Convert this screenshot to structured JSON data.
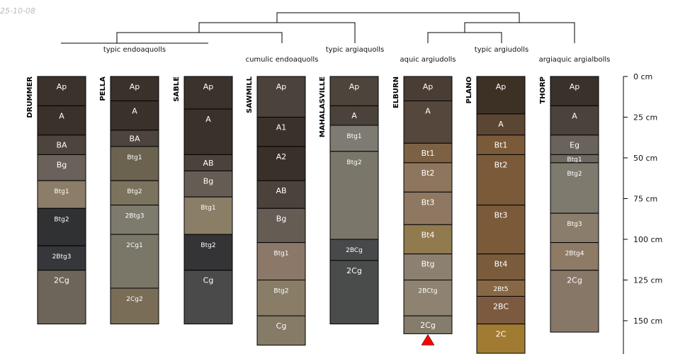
{
  "date_label": "25-10-08",
  "groups": [
    {
      "label": "typic endoaquolls"
    },
    {
      "label": "cumulic endoaquolls"
    },
    {
      "label": "typic argiaquolls"
    },
    {
      "label": "aquic argiudolls"
    },
    {
      "label": "typic argiudolls"
    },
    {
      "label": "argiaquic argialbolls"
    }
  ],
  "depth_axis": {
    "unit": "cm",
    "ticks": [
      {
        "value": 0,
        "label": "0 cm"
      },
      {
        "value": 25,
        "label": "25 cm"
      },
      {
        "value": 50,
        "label": "50 cm"
      },
      {
        "value": 75,
        "label": "75 cm"
      },
      {
        "value": 100,
        "label": "100 cm"
      },
      {
        "value": 125,
        "label": "125 cm"
      },
      {
        "value": 150,
        "label": "150 cm"
      }
    ]
  },
  "profiles": [
    {
      "name": "DRUMMER",
      "horizons": [
        {
          "name": "Ap",
          "top": 0,
          "bottom": 18,
          "color": "#3b322c"
        },
        {
          "name": "A",
          "top": 18,
          "bottom": 36,
          "color": "#3a312b"
        },
        {
          "name": "BA",
          "top": 36,
          "bottom": 48,
          "color": "#4d453d"
        },
        {
          "name": "Bg",
          "top": 48,
          "bottom": 64,
          "color": "#6a625a"
        },
        {
          "name": "Btg1",
          "top": 64,
          "bottom": 81,
          "color": "#8b7d67"
        },
        {
          "name": "Btg2",
          "top": 81,
          "bottom": 104,
          "color": "#303133"
        },
        {
          "name": "2Btg3",
          "top": 104,
          "bottom": 119,
          "color": "#36373a"
        },
        {
          "name": "2Cg",
          "top": 119,
          "bottom": 152,
          "color": "#6e655a"
        }
      ]
    },
    {
      "name": "PELLA",
      "horizons": [
        {
          "name": "Ap",
          "top": 0,
          "bottom": 15,
          "color": "#3a312b"
        },
        {
          "name": "A",
          "top": 15,
          "bottom": 33,
          "color": "#3a312b"
        },
        {
          "name": "BA",
          "top": 33,
          "bottom": 43,
          "color": "#4d453d"
        },
        {
          "name": "Btg1",
          "top": 43,
          "bottom": 64,
          "color": "#6b6350"
        },
        {
          "name": "Btg2",
          "top": 64,
          "bottom": 79,
          "color": "#7c735e"
        },
        {
          "name": "2Btg3",
          "top": 79,
          "bottom": 97,
          "color": "#7e7a6e"
        },
        {
          "name": "2Cg1",
          "top": 97,
          "bottom": 130,
          "color": "#7a7668"
        },
        {
          "name": "2Cg2",
          "top": 130,
          "bottom": 152,
          "color": "#7a6d57"
        }
      ]
    },
    {
      "name": "SABLE",
      "horizons": [
        {
          "name": "Ap",
          "top": 0,
          "bottom": 20,
          "color": "#3b322c"
        },
        {
          "name": "A",
          "top": 20,
          "bottom": 48,
          "color": "#3a312b"
        },
        {
          "name": "AB",
          "top": 48,
          "bottom": 58,
          "color": "#4a423b"
        },
        {
          "name": "Bg",
          "top": 58,
          "bottom": 74,
          "color": "#655d54"
        },
        {
          "name": "Btg1",
          "top": 74,
          "bottom": 97,
          "color": "#8a7e66"
        },
        {
          "name": "Btg2",
          "top": 97,
          "bottom": 119,
          "color": "#343436"
        },
        {
          "name": "Cg",
          "top": 119,
          "bottom": 152,
          "color": "#4a4a4a"
        }
      ]
    },
    {
      "name": "SAWMILL",
      "horizons": [
        {
          "name": "Ap",
          "top": 0,
          "bottom": 25,
          "color": "#4a423b"
        },
        {
          "name": "A1",
          "top": 25,
          "bottom": 43,
          "color": "#3a312b"
        },
        {
          "name": "A2",
          "top": 43,
          "bottom": 64,
          "color": "#39302a"
        },
        {
          "name": "AB",
          "top": 64,
          "bottom": 81,
          "color": "#4a423b"
        },
        {
          "name": "Bg",
          "top": 81,
          "bottom": 102,
          "color": "#655d54"
        },
        {
          "name": "Btg1",
          "top": 102,
          "bottom": 125,
          "color": "#8c7868"
        },
        {
          "name": "Btg2",
          "top": 125,
          "bottom": 147,
          "color": "#8a7d67"
        },
        {
          "name": "Cg",
          "top": 147,
          "bottom": 165,
          "color": "#857b66"
        }
      ]
    },
    {
      "name": "MAHALASVILLE",
      "horizons": [
        {
          "name": "Ap",
          "top": 0,
          "bottom": 18,
          "color": "#4d443c"
        },
        {
          "name": "A",
          "top": 18,
          "bottom": 30,
          "color": "#4a423b"
        },
        {
          "name": "Btg1",
          "top": 30,
          "bottom": 46,
          "color": "#7e7c72"
        },
        {
          "name": "Btg2",
          "top": 46,
          "bottom": 100,
          "color": "#7a7669"
        },
        {
          "name": "2BCg",
          "top": 100,
          "bottom": 113,
          "color": "#48494b"
        },
        {
          "name": "2Cg",
          "top": 113,
          "bottom": 152,
          "color": "#4a4b4b"
        }
      ]
    },
    {
      "name": "ELBURN",
      "horizons": [
        {
          "name": "Ap",
          "top": 0,
          "bottom": 15,
          "color": "#4a3e34"
        },
        {
          "name": "A",
          "top": 15,
          "bottom": 41,
          "color": "#55473c"
        },
        {
          "name": "Bt1",
          "top": 41,
          "bottom": 53,
          "color": "#7c6144"
        },
        {
          "name": "Bt2",
          "top": 53,
          "bottom": 71,
          "color": "#8e765e"
        },
        {
          "name": "Bt3",
          "top": 71,
          "bottom": 91,
          "color": "#8f7861"
        },
        {
          "name": "Bt4",
          "top": 91,
          "bottom": 109,
          "color": "#927a4f"
        },
        {
          "name": "Btg",
          "top": 109,
          "bottom": 125,
          "color": "#8c8170"
        },
        {
          "name": "2BCtg",
          "top": 125,
          "bottom": 147,
          "color": "#8e8270"
        },
        {
          "name": "2Cg",
          "top": 147,
          "bottom": 158,
          "color": "#867c6b"
        }
      ],
      "truncated": true
    },
    {
      "name": "PLANO",
      "horizons": [
        {
          "name": "Ap",
          "top": 0,
          "bottom": 23,
          "color": "#3d3025"
        },
        {
          "name": "A",
          "top": 23,
          "bottom": 36,
          "color": "#5b4634"
        },
        {
          "name": "Bt1",
          "top": 36,
          "bottom": 48,
          "color": "#7b5a3a"
        },
        {
          "name": "Bt2",
          "top": 48,
          "bottom": 79,
          "color": "#7b5a3a"
        },
        {
          "name": "Bt3",
          "top": 79,
          "bottom": 109,
          "color": "#7b5a3a"
        },
        {
          "name": "Bt4",
          "top": 109,
          "bottom": 125,
          "color": "#7a5b3b"
        },
        {
          "name": "2Bt5",
          "top": 125,
          "bottom": 135,
          "color": "#876744"
        },
        {
          "name": "2BC",
          "top": 135,
          "bottom": 152,
          "color": "#7c5a40"
        },
        {
          "name": "2C",
          "top": 152,
          "bottom": 170,
          "color": "#a27b33"
        }
      ]
    },
    {
      "name": "THORP",
      "horizons": [
        {
          "name": "Ap",
          "top": 0,
          "bottom": 18,
          "color": "#3a312b"
        },
        {
          "name": "A",
          "top": 18,
          "bottom": 36,
          "color": "#4b423b"
        },
        {
          "name": "Eg",
          "top": 36,
          "bottom": 48,
          "color": "#6a635b"
        },
        {
          "name": "Btg1",
          "top": 48,
          "bottom": 53,
          "color": "#6f685f"
        },
        {
          "name": "Btg2",
          "top": 53,
          "bottom": 84,
          "color": "#7e7a6e"
        },
        {
          "name": "Btg3",
          "top": 84,
          "bottom": 102,
          "color": "#8b7d6b"
        },
        {
          "name": "2Btg4",
          "top": 102,
          "bottom": 119,
          "color": "#8d7b66"
        },
        {
          "name": "2Cg",
          "top": 119,
          "bottom": 157,
          "color": "#877767"
        }
      ]
    }
  ]
}
